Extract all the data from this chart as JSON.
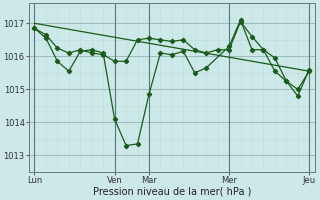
{
  "bg_color": "#cce8e8",
  "grid_color_major": "#99bbbb",
  "grid_color_minor": "#bbdddd",
  "line_color": "#1a5c1a",
  "ylabel_ticks": [
    1013,
    1014,
    1015,
    1016,
    1017
  ],
  "xlabel": "Pression niveau de la mer( hPa )",
  "x_tick_labels": [
    "Lun",
    "Ven",
    "Mar",
    "Mer",
    "Jeu"
  ],
  "x_tick_positions": [
    0,
    14,
    20,
    34,
    48
  ],
  "figsize": [
    3.2,
    2.0
  ],
  "dpi": 100,
  "series_smooth_x": [
    0,
    2,
    4,
    6,
    8,
    10,
    12,
    14,
    16,
    18,
    20,
    22,
    24,
    26,
    28,
    30,
    32,
    34,
    36,
    38,
    40,
    42,
    44,
    46,
    48
  ],
  "series_smooth_y": [
    1016.85,
    1016.65,
    1016.25,
    1016.1,
    1016.2,
    1016.1,
    1016.05,
    1015.85,
    1015.85,
    1016.5,
    1016.55,
    1016.5,
    1016.45,
    1016.5,
    1016.2,
    1016.1,
    1016.2,
    1016.2,
    1017.05,
    1016.6,
    1016.2,
    1015.95,
    1015.25,
    1015.0,
    1015.55
  ],
  "series_low_x": [
    0,
    2,
    4,
    6,
    8,
    10,
    12,
    14,
    16,
    18,
    20,
    22,
    24,
    26,
    28,
    30,
    34,
    36,
    38,
    40,
    42,
    44,
    46,
    48
  ],
  "series_low_y": [
    1016.85,
    1016.55,
    1015.85,
    1015.55,
    1016.15,
    1016.2,
    1016.1,
    1014.1,
    1013.3,
    1013.35,
    1014.85,
    1016.1,
    1016.05,
    1016.15,
    1015.5,
    1015.65,
    1016.3,
    1017.1,
    1016.2,
    1016.2,
    1015.55,
    1015.25,
    1014.8,
    1015.6
  ],
  "trend_x": [
    0,
    48
  ],
  "trend_y": [
    1017.0,
    1015.55
  ]
}
